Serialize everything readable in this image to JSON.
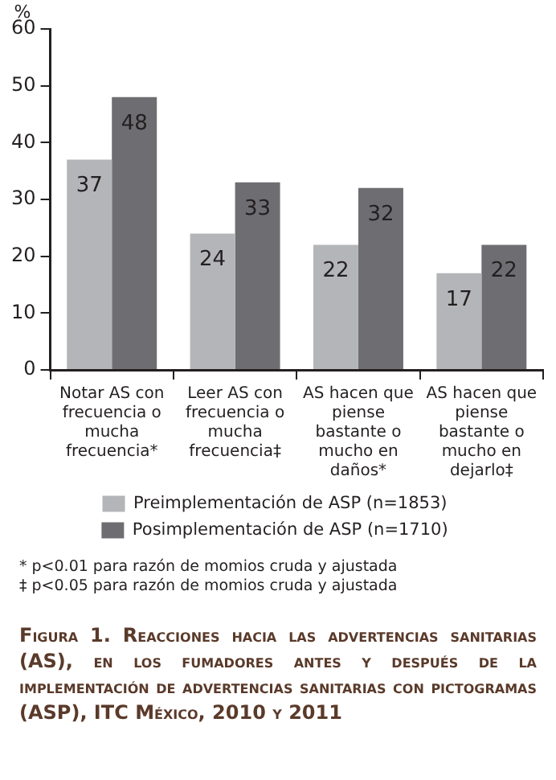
{
  "chart_data": {
    "type": "bar",
    "title": "Figura 1. Reacciones hacia las advertencias sanitarias (AS), en los fumadores antes y después de la implementación de advertencias sanitarias con pictogramas (ASP), ITC México, 2010 y 2011",
    "ylabel": "%",
    "categories": [
      "Notar AS con frecuencia o mucha frecuencia*",
      "Leer AS con frecuencia o mucha frecuencia‡",
      "AS hacen que piense bastante o mucho en daños*",
      "AS hacen que piense bastante o mucho en dejarlo‡"
    ],
    "series": [
      {
        "name": "Preimplementación de ASP (n=1853)",
        "color": "#b4b5b8",
        "values": [
          37,
          24,
          22,
          17
        ]
      },
      {
        "name": "Posimplementación de ASP (n=1710)",
        "color": "#6e6e72",
        "values": [
          48,
          33,
          32,
          22
        ]
      }
    ],
    "ylim": [
      0,
      60
    ],
    "yticks": [
      0,
      10,
      20,
      30,
      40,
      50,
      60
    ],
    "grid": false,
    "legend": "bottom",
    "data_labels": true,
    "annotations": [
      "* p<0.01 para razón de momios cruda y ajustada",
      "‡ p<0.05 para razón de momios cruda y ajustada"
    ]
  }
}
